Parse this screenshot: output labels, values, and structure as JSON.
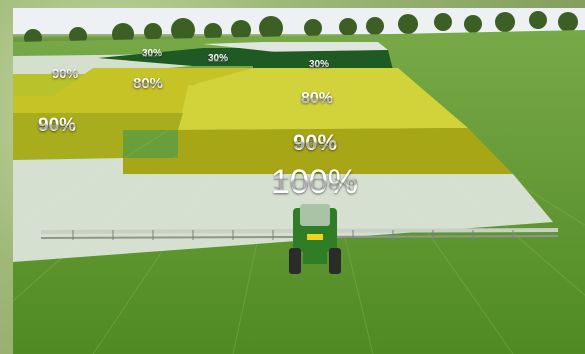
{
  "scene": {
    "description_free": true,
    "zones": {
      "z30a": "30%",
      "z30b": "30%",
      "z30c": "30%",
      "z90_top": "90%",
      "z80_left": "80%",
      "z80_center": "80%",
      "z90_left": "90%",
      "z90_center": "90%",
      "z100": "100%"
    },
    "colors": {
      "dark_zone": "#1f5a23",
      "light_zone": "#dfe6de",
      "yellow_zone": "#cfcf2a",
      "olive_zone": "#a7ad1c",
      "grass": "#5f9a2d",
      "tractor": "#2f7d25"
    }
  }
}
